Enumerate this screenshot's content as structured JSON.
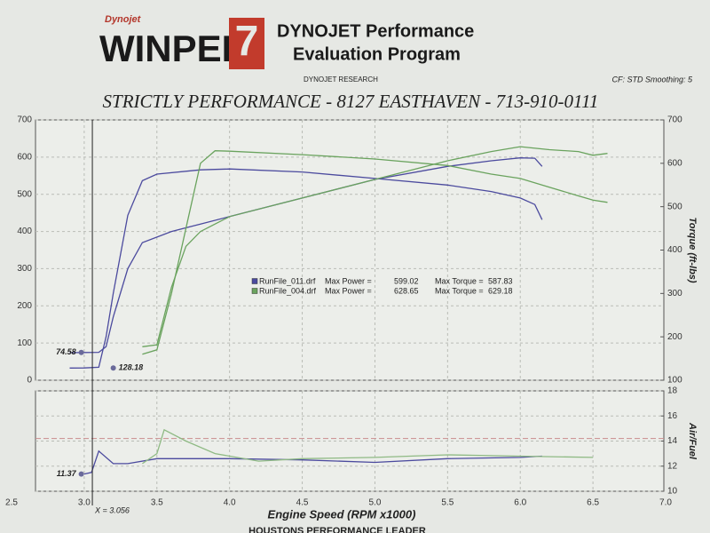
{
  "header": {
    "logo_small": "Dynojet",
    "logo": "WINPEP",
    "logo_number": "7",
    "title_line1": "DYNOJET Performance",
    "title_line2": "Evaluation Program",
    "company": "DYNOJET RESEARCH",
    "settings": "CF: STD Smoothing: 5",
    "shop": "STRICTLY PERFORMANCE - 8127 EASTHAVEN - 713-910-0111",
    "footer": "HOUSTONS PERFORMANCE LEADER"
  },
  "chart_data": [
    {
      "type": "line",
      "xlim": [
        2.5,
        7.0
      ],
      "ylim": [
        0,
        700
      ],
      "yticks": [
        0,
        100,
        200,
        300,
        400,
        500,
        600,
        700
      ],
      "y2lim": [
        100,
        700
      ],
      "y2ticks": [
        100,
        200,
        300,
        400,
        500,
        600,
        700
      ],
      "y2label": "Torque (ft-lbs)",
      "grid": true,
      "series": [
        {
          "color": "#4b4a9e",
          "axis": "y",
          "x": [
            2.9,
            3.0,
            3.1,
            3.15,
            3.2,
            3.3,
            3.4,
            3.6,
            3.8,
            4.0,
            4.5,
            5.0,
            5.5,
            5.8,
            6.0,
            6.1,
            6.15
          ],
          "values": [
            74,
            74.58,
            75,
            90,
            170,
            300,
            370,
            400,
            420,
            440,
            490,
            540,
            575,
            590,
            598,
            597,
            575
          ]
        },
        {
          "color": "#4b4a9e",
          "axis": "y2",
          "x": [
            2.9,
            3.0,
            3.1,
            3.15,
            3.2,
            3.3,
            3.4,
            3.5,
            3.8,
            4.0,
            4.5,
            5.0,
            5.5,
            5.8,
            6.0,
            6.1,
            6.15
          ],
          "values": [
            128,
            128.18,
            130,
            200,
            300,
            480,
            560,
            575,
            585,
            587,
            580,
            565,
            550,
            535,
            520,
            505,
            470
          ]
        },
        {
          "color": "#6aa35e",
          "axis": "y",
          "x": [
            3.4,
            3.5,
            3.6,
            3.7,
            3.8,
            3.9,
            4.0,
            4.5,
            5.0,
            5.5,
            5.8,
            6.0,
            6.2,
            6.4,
            6.5,
            6.6
          ],
          "values": [
            90,
            95,
            250,
            360,
            400,
            420,
            440,
            490,
            540,
            590,
            615,
            628,
            620,
            615,
            605,
            610
          ]
        },
        {
          "color": "#6aa35e",
          "axis": "y2",
          "x": [
            3.4,
            3.5,
            3.6,
            3.7,
            3.8,
            3.9,
            4.0,
            4.5,
            5.0,
            5.5,
            5.8,
            6.0,
            6.2,
            6.4,
            6.5,
            6.6
          ],
          "values": [
            160,
            170,
            300,
            450,
            600,
            629,
            628,
            620,
            610,
            595,
            575,
            565,
            545,
            525,
            515,
            510
          ]
        }
      ],
      "legend": [
        {
          "name": "RunFile_011.drf",
          "color": "#4b4a9e",
          "power_label": "Max Power =",
          "power": 599.02,
          "torque_label": "Max Torque =",
          "torque": 587.83
        },
        {
          "name": "RunFile_004.drf",
          "color": "#6aa35e",
          "power_label": "Max Power =",
          "power": 628.65,
          "torque_label": "Max Torque =",
          "torque": 629.18
        }
      ],
      "markers": [
        {
          "x": 2.98,
          "value": 74.58,
          "axis": "y"
        },
        {
          "x": 3.2,
          "value": 128.18,
          "axis": "y2"
        }
      ]
    },
    {
      "type": "line",
      "xlim": [
        2.5,
        7.0
      ],
      "xticks": [
        2.5,
        {
          "value": 3,
          "label": "3.0"
        },
        3.5,
        {
          "value": 4,
          "label": "4.0"
        },
        4.5,
        {
          "value": 5,
          "label": "5.0"
        },
        5.5,
        {
          "value": 6,
          "label": "6.0"
        },
        6.5,
        {
          "value": 7,
          "label": "7.0"
        }
      ],
      "xlabel": "Engine Speed (RPM x1000)",
      "y2lim": [
        10,
        18
      ],
      "y2ticks": [
        10,
        12,
        14,
        16,
        18
      ],
      "y2label": "Air/Fuel",
      "grid": true,
      "reference_line": 14.2,
      "series": [
        {
          "color": "#4b4a9e",
          "axis": "y2",
          "x": [
            3.0,
            3.05,
            3.1,
            3.2,
            3.3,
            3.5,
            4.0,
            4.5,
            5.0,
            5.5,
            6.0,
            6.15
          ],
          "values": [
            11.37,
            11.5,
            13.2,
            12.2,
            12.2,
            12.6,
            12.6,
            12.5,
            12.3,
            12.6,
            12.7,
            12.8
          ]
        },
        {
          "color": "#8fba84",
          "axis": "y2",
          "x": [
            3.4,
            3.5,
            3.55,
            3.7,
            3.9,
            4.2,
            4.5,
            5.0,
            5.5,
            6.0,
            6.5
          ],
          "values": [
            12.2,
            13.0,
            14.9,
            14.0,
            13.0,
            12.4,
            12.6,
            12.7,
            12.9,
            12.8,
            12.7
          ]
        }
      ],
      "cursor": {
        "value": 3.056,
        "label": "X = 3.056"
      },
      "markers": [
        {
          "x": 2.98,
          "value": 11.37,
          "axis": "y2"
        }
      ]
    }
  ]
}
